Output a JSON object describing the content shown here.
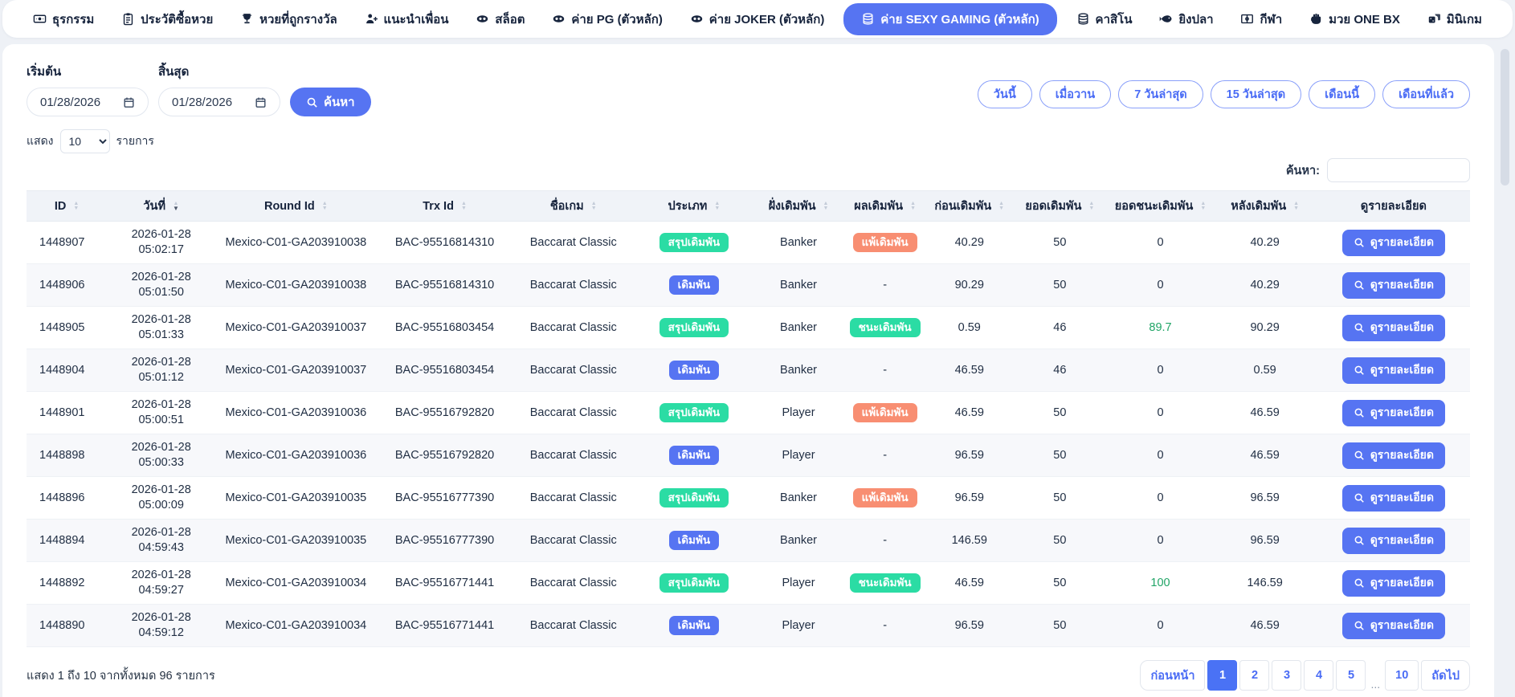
{
  "nav": {
    "items": [
      {
        "label": "ธุรกรรม",
        "icon": "money-icon",
        "active": false
      },
      {
        "label": "ประวัติซื้อหวย",
        "icon": "clipboard-icon",
        "active": false
      },
      {
        "label": "หวยที่ถูกรางวัล",
        "icon": "trophy-icon",
        "active": false
      },
      {
        "label": "แนะนำเพื่อน",
        "icon": "person-plus-icon",
        "active": false
      },
      {
        "label": "สล็อต",
        "icon": "mask-icon",
        "active": false
      },
      {
        "label": "ค่าย PG (ตัวหลัก)",
        "icon": "mask-icon",
        "active": false
      },
      {
        "label": "ค่าย JOKER (ตัวหลัก)",
        "icon": "mask-icon",
        "active": false
      },
      {
        "label": "ค่าย SEXY GAMING (ตัวหลัก)",
        "icon": "coins-icon",
        "active": true
      },
      {
        "label": "คาสิโน",
        "icon": "coins-icon",
        "active": false
      },
      {
        "label": "ยิงปลา",
        "icon": "fish-icon",
        "active": false
      },
      {
        "label": "กีฬา",
        "icon": "field-icon",
        "active": false
      },
      {
        "label": "มวย ONE BX",
        "icon": "fist-icon",
        "active": false
      },
      {
        "label": "มินิเกม",
        "icon": "dice-icon",
        "active": false
      }
    ]
  },
  "filters": {
    "start_label": "เริ่มต้น",
    "end_label": "สิ้นสุด",
    "start_value": "01/28/2026",
    "end_value": "01/28/2026",
    "search_button": "ค้นหา",
    "show_label": "แสดง",
    "show_value": "10",
    "items_label": "รายการ",
    "quick_filters": [
      "วันนี้",
      "เมื่อวาน",
      "7 วันล่าสุด",
      "15 วันล่าสุด",
      "เดือนนี้",
      "เดือนที่แล้ว"
    ],
    "table_search_label": "ค้นหา:",
    "table_search_value": ""
  },
  "table": {
    "headers": [
      {
        "label": "ID",
        "sortable": true,
        "sorted": null
      },
      {
        "label": "วันที่",
        "sortable": true,
        "sorted": "desc"
      },
      {
        "label": "Round Id",
        "sortable": true,
        "sorted": null
      },
      {
        "label": "Trx Id",
        "sortable": true,
        "sorted": null
      },
      {
        "label": "ชื่อเกม",
        "sortable": true,
        "sorted": null
      },
      {
        "label": "ประเภท",
        "sortable": true,
        "sorted": null
      },
      {
        "label": "ฝั่งเดิมพัน",
        "sortable": true,
        "sorted": null
      },
      {
        "label": "ผลเดิมพัน",
        "sortable": true,
        "sorted": null
      },
      {
        "label": "ก่อนเดิมพัน",
        "sortable": true,
        "sorted": null
      },
      {
        "label": "ยอดเดิมพัน",
        "sortable": true,
        "sorted": null
      },
      {
        "label": "ยอดชนะเดิมพัน",
        "sortable": true,
        "sorted": null
      },
      {
        "label": "หลังเดิมพัน",
        "sortable": true,
        "sorted": null
      },
      {
        "label": "ดูรายละเอียด",
        "sortable": false,
        "sorted": null
      }
    ],
    "detail_button_label": "ดูรายละเอียด",
    "rows": [
      {
        "id": "1448907",
        "date": "2026-01-28",
        "time": "05:02:17",
        "round_id": "Mexico-C01-GA203910038",
        "trx_id": "BAC-95516814310",
        "game": "Baccarat Classic",
        "type": "สรุปเดิมพัน",
        "type_style": "teal",
        "side": "Banker",
        "result": "แพ้เดิมพัน",
        "result_style": "red",
        "before": "40.29",
        "amount": "50",
        "win": "0",
        "win_green": false,
        "after": "40.29"
      },
      {
        "id": "1448906",
        "date": "2026-01-28",
        "time": "05:01:50",
        "round_id": "Mexico-C01-GA203910038",
        "trx_id": "BAC-95516814310",
        "game": "Baccarat Classic",
        "type": "เดิมพัน",
        "type_style": "blue",
        "side": "Banker",
        "result": "-",
        "result_style": null,
        "before": "90.29",
        "amount": "50",
        "win": "0",
        "win_green": false,
        "after": "40.29"
      },
      {
        "id": "1448905",
        "date": "2026-01-28",
        "time": "05:01:33",
        "round_id": "Mexico-C01-GA203910037",
        "trx_id": "BAC-95516803454",
        "game": "Baccarat Classic",
        "type": "สรุปเดิมพัน",
        "type_style": "teal",
        "side": "Banker",
        "result": "ชนะเดิมพัน",
        "result_style": "teal",
        "before": "0.59",
        "amount": "46",
        "win": "89.7",
        "win_green": true,
        "after": "90.29"
      },
      {
        "id": "1448904",
        "date": "2026-01-28",
        "time": "05:01:12",
        "round_id": "Mexico-C01-GA203910037",
        "trx_id": "BAC-95516803454",
        "game": "Baccarat Classic",
        "type": "เดิมพัน",
        "type_style": "blue",
        "side": "Banker",
        "result": "-",
        "result_style": null,
        "before": "46.59",
        "amount": "46",
        "win": "0",
        "win_green": false,
        "after": "0.59"
      },
      {
        "id": "1448901",
        "date": "2026-01-28",
        "time": "05:00:51",
        "round_id": "Mexico-C01-GA203910036",
        "trx_id": "BAC-95516792820",
        "game": "Baccarat Classic",
        "type": "สรุปเดิมพัน",
        "type_style": "teal",
        "side": "Player",
        "result": "แพ้เดิมพัน",
        "result_style": "red",
        "before": "46.59",
        "amount": "50",
        "win": "0",
        "win_green": false,
        "after": "46.59"
      },
      {
        "id": "1448898",
        "date": "2026-01-28",
        "time": "05:00:33",
        "round_id": "Mexico-C01-GA203910036",
        "trx_id": "BAC-95516792820",
        "game": "Baccarat Classic",
        "type": "เดิมพัน",
        "type_style": "blue",
        "side": "Player",
        "result": "-",
        "result_style": null,
        "before": "96.59",
        "amount": "50",
        "win": "0",
        "win_green": false,
        "after": "46.59"
      },
      {
        "id": "1448896",
        "date": "2026-01-28",
        "time": "05:00:09",
        "round_id": "Mexico-C01-GA203910035",
        "trx_id": "BAC-95516777390",
        "game": "Baccarat Classic",
        "type": "สรุปเดิมพัน",
        "type_style": "teal",
        "side": "Banker",
        "result": "แพ้เดิมพัน",
        "result_style": "red",
        "before": "96.59",
        "amount": "50",
        "win": "0",
        "win_green": false,
        "after": "96.59"
      },
      {
        "id": "1448894",
        "date": "2026-01-28",
        "time": "04:59:43",
        "round_id": "Mexico-C01-GA203910035",
        "trx_id": "BAC-95516777390",
        "game": "Baccarat Classic",
        "type": "เดิมพัน",
        "type_style": "blue",
        "side": "Banker",
        "result": "-",
        "result_style": null,
        "before": "146.59",
        "amount": "50",
        "win": "0",
        "win_green": false,
        "after": "96.59"
      },
      {
        "id": "1448892",
        "date": "2026-01-28",
        "time": "04:59:27",
        "round_id": "Mexico-C01-GA203910034",
        "trx_id": "BAC-95516771441",
        "game": "Baccarat Classic",
        "type": "สรุปเดิมพัน",
        "type_style": "teal",
        "side": "Player",
        "result": "ชนะเดิมพัน",
        "result_style": "teal",
        "before": "46.59",
        "amount": "50",
        "win": "100",
        "win_green": true,
        "after": "146.59"
      },
      {
        "id": "1448890",
        "date": "2026-01-28",
        "time": "04:59:12",
        "round_id": "Mexico-C01-GA203910034",
        "trx_id": "BAC-95516771441",
        "game": "Baccarat Classic",
        "type": "เดิมพัน",
        "type_style": "blue",
        "side": "Player",
        "result": "-",
        "result_style": null,
        "before": "96.59",
        "amount": "50",
        "win": "0",
        "win_green": false,
        "after": "46.59"
      }
    ]
  },
  "footer": {
    "summary": "แสดง 1 ถึง 10 จากทั้งหมด 96 รายการ",
    "pagination": {
      "prev_label": "ก่อนหน้า",
      "pages": [
        "1",
        "2",
        "3",
        "4",
        "5",
        "...",
        "10"
      ],
      "active_page": "1",
      "next_label": "ถัดไป"
    }
  },
  "colors": {
    "primary_blue": "#5674f2",
    "pagination_active_blue": "#4a72f5",
    "badge_teal": "#2bdca4",
    "badge_red": "#f88e72",
    "win_text_green": "#21a567",
    "page_background": "#eef1f6",
    "table_header_bg": "#f0f3f8"
  }
}
